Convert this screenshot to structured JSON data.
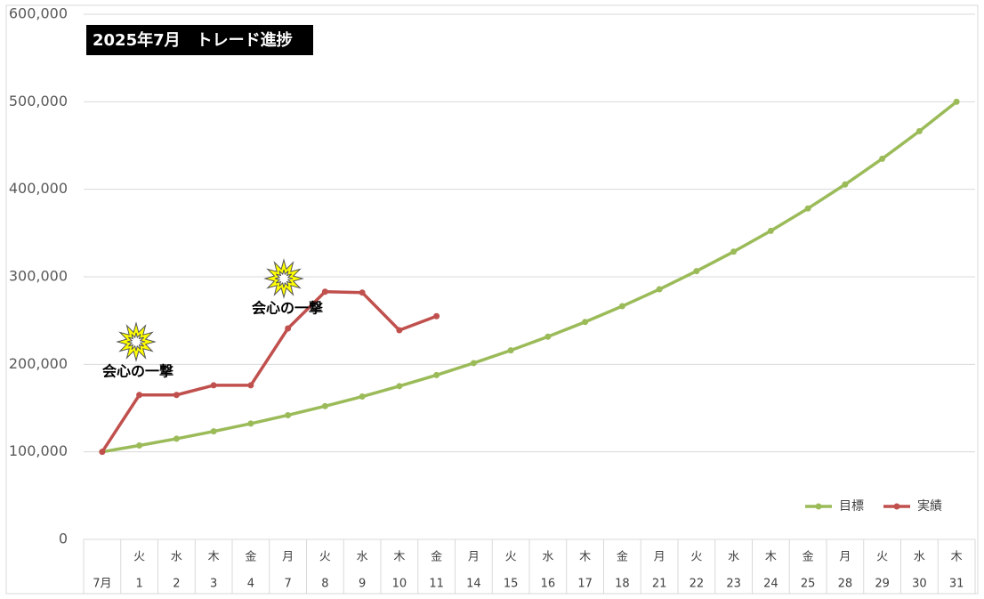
{
  "chart_data": {
    "type": "line",
    "title": "2025年7月　トレード進捗",
    "categories": [
      "7月",
      "1",
      "2",
      "3",
      "4",
      "7",
      "8",
      "9",
      "10",
      "11",
      "14",
      "15",
      "16",
      "17",
      "18",
      "21",
      "22",
      "23",
      "24",
      "25",
      "28",
      "29",
      "30",
      "31"
    ],
    "weekdays": [
      null,
      "火",
      "水",
      "木",
      "金",
      "月",
      "火",
      "水",
      "木",
      "金",
      "月",
      "火",
      "水",
      "木",
      "金",
      "月",
      "火",
      "水",
      "木",
      "金",
      "月",
      "火",
      "水",
      "木"
    ],
    "series": [
      {
        "name": "目標",
        "color": "#9bbb59",
        "values": [
          100000,
          107300,
          115000,
          123400,
          132300,
          141900,
          152200,
          163200,
          175100,
          187700,
          201400,
          216000,
          231600,
          248400,
          266400,
          285700,
          306500,
          328700,
          352500,
          378100,
          405500,
          434900,
          466400,
          500000
        ]
      },
      {
        "name": "実績",
        "color": "#c0504d",
        "values": [
          100000,
          165000,
          165000,
          176000,
          176000,
          241000,
          283000,
          282000,
          239000,
          255000,
          null,
          null,
          null,
          null,
          null,
          null,
          null,
          null,
          null,
          null,
          null,
          null,
          null,
          null
        ]
      }
    ],
    "annotations": [
      "会心の一撃",
      "会心の一撃"
    ],
    "ylim": [
      0,
      600000
    ],
    "yticks": [
      0,
      {
        "value": 100000,
        "label": "100,000"
      },
      {
        "value": 200000,
        "label": "200,000"
      },
      {
        "value": 300000,
        "label": "300,000"
      },
      {
        "value": 400000,
        "label": "400,000"
      },
      {
        "value": 500000,
        "label": "500,000"
      },
      {
        "value": 600000,
        "label": "600,000"
      }
    ],
    "grid": true,
    "legend": "lower right"
  }
}
